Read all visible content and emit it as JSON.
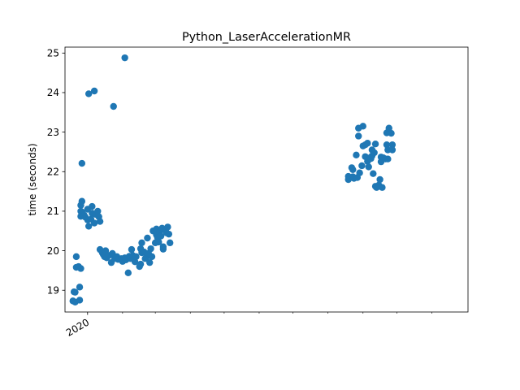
{
  "chart_data": {
    "type": "scatter",
    "title": "Python_LaserAccelerationMR",
    "xlabel": "",
    "ylabel": "time (seconds)",
    "x_axis": {
      "kind": "date",
      "major_ticks": [
        {
          "value": "2020-01-01",
          "label": "2020"
        }
      ],
      "minor_ticks": [
        "2020-02-01",
        "2020-03-01",
        "2020-04-01",
        "2020-05-01",
        "2020-06-01",
        "2020-07-01",
        "2020-08-01",
        "2020-09-01",
        "2020-10-01",
        "2020-11-01"
      ],
      "xlim": [
        "2019-12-12",
        "2020-12-03"
      ]
    },
    "y_axis": {
      "ticks": [
        19,
        20,
        21,
        22,
        23,
        24,
        25
      ],
      "ylim": [
        18.45,
        25.15
      ]
    },
    "grid": false,
    "marker_color": "#1f77b4",
    "points": [
      {
        "x": "2019-12-19",
        "y": 18.73
      },
      {
        "x": "2019-12-20",
        "y": 18.96
      },
      {
        "x": "2019-12-21",
        "y": 18.95
      },
      {
        "x": "2019-12-21",
        "y": 18.7
      },
      {
        "x": "2019-12-22",
        "y": 19.85
      },
      {
        "x": "2019-12-22",
        "y": 19.58
      },
      {
        "x": "2019-12-24",
        "y": 19.6
      },
      {
        "x": "2019-12-25",
        "y": 19.08
      },
      {
        "x": "2019-12-25",
        "y": 18.75
      },
      {
        "x": "2019-12-26",
        "y": 19.55
      },
      {
        "x": "2019-12-26",
        "y": 21.15
      },
      {
        "x": "2019-12-26",
        "y": 21.0
      },
      {
        "x": "2019-12-26",
        "y": 20.87
      },
      {
        "x": "2019-12-27",
        "y": 21.25
      },
      {
        "x": "2019-12-27",
        "y": 22.21
      },
      {
        "x": "2019-12-27",
        "y": 20.98
      },
      {
        "x": "2019-12-29",
        "y": 20.9
      },
      {
        "x": "2019-12-30",
        "y": 20.85
      },
      {
        "x": "2020-01-01",
        "y": 21.05
      },
      {
        "x": "2020-01-01",
        "y": 20.78
      },
      {
        "x": "2020-01-02",
        "y": 23.97
      },
      {
        "x": "2020-01-02",
        "y": 20.62
      },
      {
        "x": "2020-01-04",
        "y": 20.8
      },
      {
        "x": "2020-01-05",
        "y": 20.95
      },
      {
        "x": "2020-01-05",
        "y": 21.12
      },
      {
        "x": "2020-01-07",
        "y": 24.04
      },
      {
        "x": "2020-01-07",
        "y": 20.7
      },
      {
        "x": "2020-01-08",
        "y": 20.92
      },
      {
        "x": "2020-01-10",
        "y": 21.0
      },
      {
        "x": "2020-01-11",
        "y": 20.86
      },
      {
        "x": "2020-01-12",
        "y": 20.74
      },
      {
        "x": "2020-01-12",
        "y": 20.03
      },
      {
        "x": "2020-01-14",
        "y": 19.95
      },
      {
        "x": "2020-01-15",
        "y": 19.9
      },
      {
        "x": "2020-01-16",
        "y": 19.85
      },
      {
        "x": "2020-01-17",
        "y": 20.0
      },
      {
        "x": "2020-01-18",
        "y": 19.82
      },
      {
        "x": "2020-01-20",
        "y": 19.88
      },
      {
        "x": "2020-01-22",
        "y": 19.7
      },
      {
        "x": "2020-01-23",
        "y": 19.93
      },
      {
        "x": "2020-01-24",
        "y": 23.65
      },
      {
        "x": "2020-01-25",
        "y": 19.8
      },
      {
        "x": "2020-01-27",
        "y": 19.85
      },
      {
        "x": "2020-01-28",
        "y": 19.78
      },
      {
        "x": "2020-01-31",
        "y": 19.8
      },
      {
        "x": "2020-02-01",
        "y": 19.73
      },
      {
        "x": "2020-02-03",
        "y": 24.88
      },
      {
        "x": "2020-02-03",
        "y": 19.82
      },
      {
        "x": "2020-02-04",
        "y": 19.77
      },
      {
        "x": "2020-02-06",
        "y": 19.44
      },
      {
        "x": "2020-02-07",
        "y": 19.86
      },
      {
        "x": "2020-02-08",
        "y": 19.8
      },
      {
        "x": "2020-02-09",
        "y": 20.03
      },
      {
        "x": "2020-02-10",
        "y": 19.88
      },
      {
        "x": "2020-02-11",
        "y": 19.8
      },
      {
        "x": "2020-02-12",
        "y": 19.72
      },
      {
        "x": "2020-02-13",
        "y": 19.85
      },
      {
        "x": "2020-02-16",
        "y": 19.6
      },
      {
        "x": "2020-02-17",
        "y": 19.66
      },
      {
        "x": "2020-02-17",
        "y": 20.05
      },
      {
        "x": "2020-02-18",
        "y": 20.2
      },
      {
        "x": "2020-02-18",
        "y": 19.95
      },
      {
        "x": "2020-02-20",
        "y": 19.97
      },
      {
        "x": "2020-02-21",
        "y": 19.8
      },
      {
        "x": "2020-02-22",
        "y": 19.83
      },
      {
        "x": "2020-02-23",
        "y": 20.32
      },
      {
        "x": "2020-02-24",
        "y": 19.93
      },
      {
        "x": "2020-02-25",
        "y": 19.7
      },
      {
        "x": "2020-02-26",
        "y": 20.05
      },
      {
        "x": "2020-02-27",
        "y": 19.85
      },
      {
        "x": "2020-02-28",
        "y": 20.5
      },
      {
        "x": "2020-03-01",
        "y": 20.2
      },
      {
        "x": "2020-03-02",
        "y": 20.55
      },
      {
        "x": "2020-03-02",
        "y": 20.4
      },
      {
        "x": "2020-03-03",
        "y": 20.33
      },
      {
        "x": "2020-03-04",
        "y": 20.22
      },
      {
        "x": "2020-03-05",
        "y": 20.47
      },
      {
        "x": "2020-03-06",
        "y": 20.37
      },
      {
        "x": "2020-03-07",
        "y": 20.57
      },
      {
        "x": "2020-03-08",
        "y": 20.1
      },
      {
        "x": "2020-03-08",
        "y": 20.04
      },
      {
        "x": "2020-03-10",
        "y": 20.52
      },
      {
        "x": "2020-03-11",
        "y": 20.45
      },
      {
        "x": "2020-03-12",
        "y": 20.6
      },
      {
        "x": "2020-03-13",
        "y": 20.42
      },
      {
        "x": "2020-03-14",
        "y": 20.2
      },
      {
        "x": "2020-08-19",
        "y": 21.88
      },
      {
        "x": "2020-08-19",
        "y": 21.8
      },
      {
        "x": "2020-08-20",
        "y": 21.85
      },
      {
        "x": "2020-08-22",
        "y": 22.1
      },
      {
        "x": "2020-08-23",
        "y": 21.87
      },
      {
        "x": "2020-08-23",
        "y": 22.05
      },
      {
        "x": "2020-08-24",
        "y": 21.83
      },
      {
        "x": "2020-08-26",
        "y": 22.42
      },
      {
        "x": "2020-08-27",
        "y": 21.85
      },
      {
        "x": "2020-08-28",
        "y": 23.1
      },
      {
        "x": "2020-08-28",
        "y": 22.9
      },
      {
        "x": "2020-08-29",
        "y": 21.97
      },
      {
        "x": "2020-08-31",
        "y": 22.15
      },
      {
        "x": "2020-09-01",
        "y": 23.15
      },
      {
        "x": "2020-09-01",
        "y": 22.65
      },
      {
        "x": "2020-09-03",
        "y": 22.68
      },
      {
        "x": "2020-09-03",
        "y": 22.38
      },
      {
        "x": "2020-09-05",
        "y": 22.72
      },
      {
        "x": "2020-09-05",
        "y": 22.26
      },
      {
        "x": "2020-09-06",
        "y": 22.12
      },
      {
        "x": "2020-09-07",
        "y": 22.35
      },
      {
        "x": "2020-09-08",
        "y": 22.33
      },
      {
        "x": "2020-09-09",
        "y": 22.4
      },
      {
        "x": "2020-09-09",
        "y": 22.55
      },
      {
        "x": "2020-09-10",
        "y": 21.95
      },
      {
        "x": "2020-09-11",
        "y": 22.48
      },
      {
        "x": "2020-09-12",
        "y": 22.7
      },
      {
        "x": "2020-09-12",
        "y": 21.63
      },
      {
        "x": "2020-09-13",
        "y": 21.6
      },
      {
        "x": "2020-09-15",
        "y": 21.66
      },
      {
        "x": "2020-09-16",
        "y": 21.8
      },
      {
        "x": "2020-09-17",
        "y": 22.37
      },
      {
        "x": "2020-09-17",
        "y": 22.25
      },
      {
        "x": "2020-09-18",
        "y": 21.6
      },
      {
        "x": "2020-09-19",
        "y": 22.35
      },
      {
        "x": "2020-09-21",
        "y": 22.32
      },
      {
        "x": "2020-09-22",
        "y": 22.68
      },
      {
        "x": "2020-09-22",
        "y": 22.98
      },
      {
        "x": "2020-09-23",
        "y": 22.55
      },
      {
        "x": "2020-09-23",
        "y": 22.32
      },
      {
        "x": "2020-09-24",
        "y": 23.1
      },
      {
        "x": "2020-09-26",
        "y": 22.97
      },
      {
        "x": "2020-09-27",
        "y": 22.68
      },
      {
        "x": "2020-09-27",
        "y": 22.55
      }
    ]
  }
}
